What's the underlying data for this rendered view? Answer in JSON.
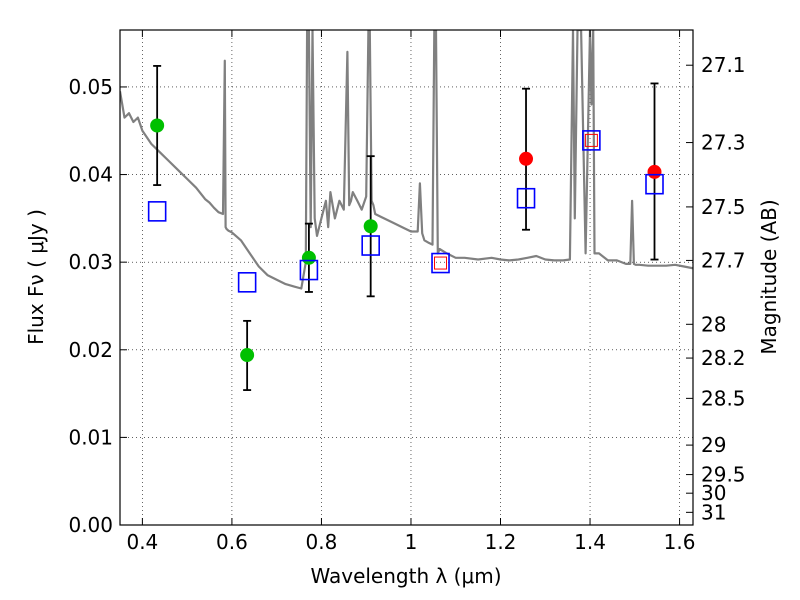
{
  "chart_data": {
    "type": "scatter",
    "xlabel": "Wavelength  λ (μm)",
    "ylabel": "Flux  Fν  ( μJy )",
    "ylabel_right": "Magnitude (AB)",
    "xlim": [
      0.35,
      1.63
    ],
    "ylim": [
      0.0,
      0.0565
    ],
    "grid": true,
    "x_ticks": [
      0.4,
      0.6,
      0.8,
      1.0,
      1.2,
      1.4,
      1.6
    ],
    "x_tick_labels": [
      "0.4",
      "0.6",
      "0.8",
      "1",
      "1.2",
      "1.4",
      "1.6"
    ],
    "y_ticks": [
      0.0,
      0.01,
      0.02,
      0.03,
      0.04,
      0.05
    ],
    "y_tick_labels": [
      "0.00",
      "0.01",
      "0.02",
      "0.03",
      "0.04",
      "0.05"
    ],
    "right_ticks": [
      {
        "label": "27.1",
        "mag": 27.1
      },
      {
        "label": "27.3",
        "mag": 27.3
      },
      {
        "label": "27.5",
        "mag": 27.5
      },
      {
        "label": "27.7",
        "mag": 27.7
      },
      {
        "label": "28",
        "mag": 28.0
      },
      {
        "label": "28.2",
        "mag": 28.2
      },
      {
        "label": "28.5",
        "mag": 28.5
      },
      {
        "label": "29",
        "mag": 29.0
      },
      {
        "label": "29.5",
        "mag": 29.5
      },
      {
        "label": "30",
        "mag": 30.0
      },
      {
        "label": "31",
        "mag": 31.0
      }
    ],
    "series": [
      {
        "type": "line",
        "color": "#808080",
        "x": [
          0.35,
          0.36,
          0.37,
          0.38,
          0.39,
          0.4,
          0.42,
          0.44,
          0.46,
          0.48,
          0.5,
          0.52,
          0.54,
          0.55,
          0.56,
          0.57,
          0.58,
          0.584,
          0.586,
          0.588,
          0.592,
          0.6,
          0.62,
          0.64,
          0.66,
          0.68,
          0.7,
          0.72,
          0.74,
          0.755,
          0.765,
          0.768,
          0.772,
          0.776,
          0.78,
          0.785,
          0.79,
          0.8,
          0.81,
          0.815,
          0.82,
          0.83,
          0.84,
          0.85,
          0.858,
          0.862,
          0.866,
          0.87,
          0.88,
          0.89,
          0.9,
          0.905,
          0.908,
          0.912,
          0.916,
          0.92,
          0.94,
          0.96,
          0.98,
          1.0,
          1.015,
          1.02,
          1.025,
          1.03,
          1.04,
          1.048,
          1.052,
          1.056,
          1.06,
          1.064,
          1.08,
          1.1,
          1.12,
          1.15,
          1.18,
          1.2,
          1.22,
          1.24,
          1.26,
          1.28,
          1.3,
          1.32,
          1.34,
          1.355,
          1.362,
          1.366,
          1.372,
          1.38,
          1.39,
          1.4,
          1.403,
          1.407,
          1.41,
          1.42,
          1.44,
          1.46,
          1.48,
          1.49,
          1.494,
          1.498,
          1.502,
          1.51,
          1.53,
          1.55,
          1.57,
          1.59,
          1.61,
          1.63
        ],
        "y": [
          0.0495,
          0.0465,
          0.047,
          0.046,
          0.0465,
          0.045,
          0.0435,
          0.0425,
          0.0415,
          0.0405,
          0.0395,
          0.0385,
          0.0372,
          0.0368,
          0.0362,
          0.0357,
          0.0355,
          0.053,
          0.034,
          0.0338,
          0.0336,
          0.0334,
          0.0325,
          0.031,
          0.0295,
          0.0285,
          0.028,
          0.0275,
          0.0272,
          0.027,
          0.03,
          0.0565,
          0.0565,
          0.034,
          0.0565,
          0.035,
          0.033,
          0.035,
          0.037,
          0.034,
          0.038,
          0.035,
          0.037,
          0.036,
          0.054,
          0.0365,
          0.037,
          0.038,
          0.037,
          0.036,
          0.0375,
          0.0565,
          0.0565,
          0.037,
          0.0365,
          0.0355,
          0.035,
          0.0345,
          0.034,
          0.0335,
          0.0335,
          0.039,
          0.0333,
          0.0325,
          0.0322,
          0.032,
          0.0565,
          0.0565,
          0.031,
          0.0315,
          0.031,
          0.0305,
          0.0305,
          0.0303,
          0.0305,
          0.0303,
          0.0302,
          0.0303,
          0.0305,
          0.0307,
          0.0303,
          0.0302,
          0.0302,
          0.0303,
          0.0565,
          0.035,
          0.0565,
          0.0565,
          0.031,
          0.0565,
          0.048,
          0.0565,
          0.031,
          0.031,
          0.0302,
          0.0302,
          0.0298,
          0.0298,
          0.037,
          0.0298,
          0.0297,
          0.0297,
          0.0296,
          0.0296,
          0.0296,
          0.0297,
          0.0295,
          0.0293
        ]
      },
      {
        "type": "errorbar",
        "color": "#000000",
        "points": [
          {
            "x": 0.433,
            "y": 0.0456,
            "ylo": 0.0388,
            "yhi": 0.0524
          },
          {
            "x": 0.634,
            "y": 0.0194,
            "ylo": 0.0154,
            "yhi": 0.0233
          },
          {
            "x": 0.772,
            "y": 0.0305,
            "ylo": 0.0266,
            "yhi": 0.0344
          },
          {
            "x": 0.91,
            "y": 0.0341,
            "ylo": 0.0261,
            "yhi": 0.0421
          },
          {
            "x": 1.257,
            "y": 0.0418,
            "ylo": 0.0337,
            "yhi": 0.0498
          },
          {
            "x": 1.544,
            "y": 0.0403,
            "ylo": 0.0303,
            "yhi": 0.0504
          }
        ]
      },
      {
        "type": "scatter",
        "marker": "circle",
        "color": "#00c000",
        "x": [
          0.433,
          0.634,
          0.772,
          0.91
        ],
        "y": [
          0.0456,
          0.0194,
          0.0305,
          0.0341
        ]
      },
      {
        "type": "scatter",
        "marker": "circle",
        "color": "#ff0000",
        "x": [
          1.257,
          1.544
        ],
        "y": [
          0.0418,
          0.0403
        ]
      },
      {
        "type": "scatter",
        "marker": "square-open",
        "color": "#ff0000",
        "x": [
          1.066,
          1.403
        ],
        "y": [
          0.0299,
          0.0439
        ]
      },
      {
        "type": "scatter",
        "marker": "square-open",
        "color": "#0000ff",
        "x": [
          0.433,
          0.634,
          0.772,
          0.91,
          1.066,
          1.257,
          1.403,
          1.544
        ],
        "y": [
          0.0358,
          0.0277,
          0.0291,
          0.0319,
          0.0299,
          0.0373,
          0.0439,
          0.0389
        ]
      }
    ]
  }
}
